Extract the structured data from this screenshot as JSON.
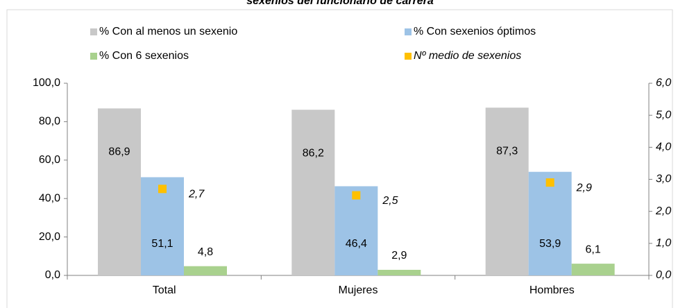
{
  "chart_data": {
    "type": "bar",
    "title": "sexenios del funcionario de carrera",
    "categories": [
      "Total",
      "Mujeres",
      "Hombres"
    ],
    "series": [
      {
        "name": "% Con al menos un sexenio",
        "color": "#c8c8c8",
        "values": [
          86.9,
          86.2,
          87.3
        ],
        "value_labels": [
          "86,9",
          "86,2",
          "87,3"
        ]
      },
      {
        "name": "% Con sexenios óptimos",
        "color": "#9dc3e6",
        "values": [
          51.1,
          46.4,
          53.9
        ],
        "value_labels": [
          "51,1",
          "46,4",
          "53,9"
        ]
      },
      {
        "name": "%  Con 6 sexenios",
        "color": "#a9d18e",
        "values": [
          4.8,
          2.9,
          6.1
        ],
        "value_labels": [
          "4,8",
          "2,9",
          "6,1"
        ]
      },
      {
        "name": "Nº medio de sexenios",
        "color": "#ffc000",
        "axis": "y2",
        "values": [
          2.7,
          2.5,
          2.9
        ],
        "value_labels": [
          "2,7",
          "2,5",
          "2,9"
        ]
      }
    ],
    "ylim": [
      0,
      100
    ],
    "yticks": [
      {
        "value": 0,
        "label": "0,0"
      },
      {
        "value": 20,
        "label": "20,0"
      },
      {
        "value": 40,
        "label": "40,0"
      },
      {
        "value": 60,
        "label": "60,0"
      },
      {
        "value": 80,
        "label": "80,0"
      },
      {
        "value": 100,
        "label": "100,0"
      }
    ],
    "y2lim": [
      0,
      6
    ],
    "y2ticks": [
      {
        "value": 0,
        "label": "0,0"
      },
      {
        "value": 1,
        "label": "1,0"
      },
      {
        "value": 2,
        "label": "2,0"
      },
      {
        "value": 3,
        "label": "3,0"
      },
      {
        "value": 4,
        "label": "4,0"
      },
      {
        "value": 5,
        "label": "5,0"
      },
      {
        "value": 6,
        "label": "6,0"
      }
    ],
    "grid": false
  }
}
